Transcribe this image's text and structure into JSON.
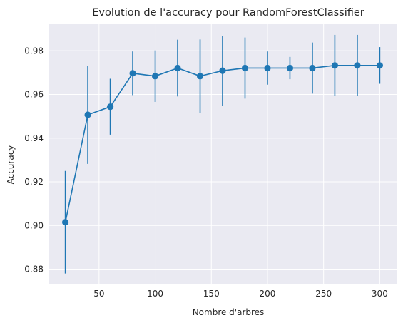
{
  "chart_data": {
    "type": "line",
    "title": "Evolution de l'accuracy pour RandomForestClassifier",
    "xlabel": "Nombre d'arbres",
    "ylabel": "Accuracy",
    "x": [
      20,
      40,
      60,
      80,
      100,
      120,
      140,
      160,
      180,
      200,
      220,
      240,
      260,
      280,
      300
    ],
    "series": [
      {
        "values": [
          0.9015,
          0.9507,
          0.9544,
          0.9697,
          0.9684,
          0.9721,
          0.9684,
          0.9709,
          0.9721,
          0.9721,
          0.9721,
          0.9721,
          0.9733,
          0.9733,
          0.9733
        ],
        "errors": [
          0.0235,
          0.0225,
          0.0128,
          0.01,
          0.0118,
          0.013,
          0.0168,
          0.016,
          0.014,
          0.0076,
          0.0051,
          0.0117,
          0.014,
          0.014,
          0.0084
        ],
        "color": "#1f77b4"
      }
    ],
    "xlim": [
      5,
      315
    ],
    "ylim": [
      0.873,
      0.9925
    ],
    "xticks": [
      50,
      100,
      150,
      200,
      250,
      300
    ],
    "yticks": [
      0.88,
      0.9,
      0.92,
      0.94,
      0.96,
      0.98
    ],
    "xtick_labels": [
      "50",
      "100",
      "150",
      "200",
      "250",
      "300"
    ],
    "ytick_labels": [
      "0.88",
      "0.90",
      "0.92",
      "0.94",
      "0.96",
      "0.98"
    ],
    "grid": true,
    "background": "#eaeaf2",
    "grid_color": "#ffffff"
  }
}
